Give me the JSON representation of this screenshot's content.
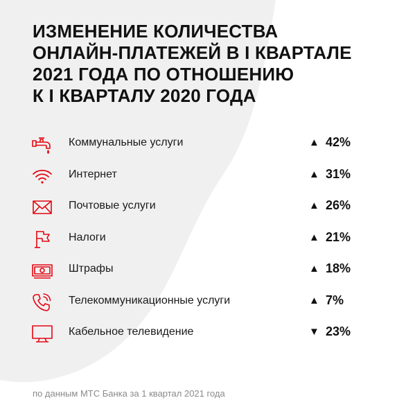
{
  "title_lines": [
    "ИЗМЕНЕНИЕ КОЛИЧЕСТВА",
    "ОНЛАЙН-ПЛАТЕЖЕЙ В I КВАРТАЛЕ",
    "2021 ГОДА ПО ОТНОШЕНИЮ",
    "К I КВАРТАЛУ 2020 ГОДА"
  ],
  "footer": "по данным МТС Банка за 1 квартал 2021 года",
  "colors": {
    "accent": "#e30611",
    "text": "#111111",
    "muted": "#8a8a8a"
  },
  "chart_data": {
    "type": "table",
    "title": "ИЗМЕНЕНИЕ КОЛИЧЕСТВА ОНЛАЙН-ПЛАТЕЖЕЙ В I КВАРТАЛЕ 2021 ГОДА ПО ОТНОШЕНИЮ К I КВАРТАЛУ 2020 ГОДА",
    "rows": [
      {
        "icon": "faucet-icon",
        "label": "Коммунальные услуги",
        "direction": "up",
        "arrow": "▲",
        "display": "42%",
        "value": 42
      },
      {
        "icon": "wifi-icon",
        "label": "Интернет",
        "direction": "up",
        "arrow": "▲",
        "display": "31%",
        "value": 31
      },
      {
        "icon": "envelope-icon",
        "label": "Почтовые услуги",
        "direction": "up",
        "arrow": "▲",
        "display": "26%",
        "value": 26
      },
      {
        "icon": "flag-icon",
        "label": "Налоги",
        "direction": "up",
        "arrow": "▲",
        "display": "21%",
        "value": 21
      },
      {
        "icon": "banknote-icon",
        "label": "Штрафы",
        "direction": "up",
        "arrow": "▲",
        "display": "18%",
        "value": 18
      },
      {
        "icon": "phone-icon",
        "label": "Телекоммуникационные услуги",
        "direction": "up",
        "arrow": "▲",
        "display": "7%",
        "value": 7
      },
      {
        "icon": "tv-icon",
        "label": "Кабельное телевидение",
        "direction": "down",
        "arrow": "▼",
        "display": "23%",
        "value": -23
      }
    ]
  }
}
